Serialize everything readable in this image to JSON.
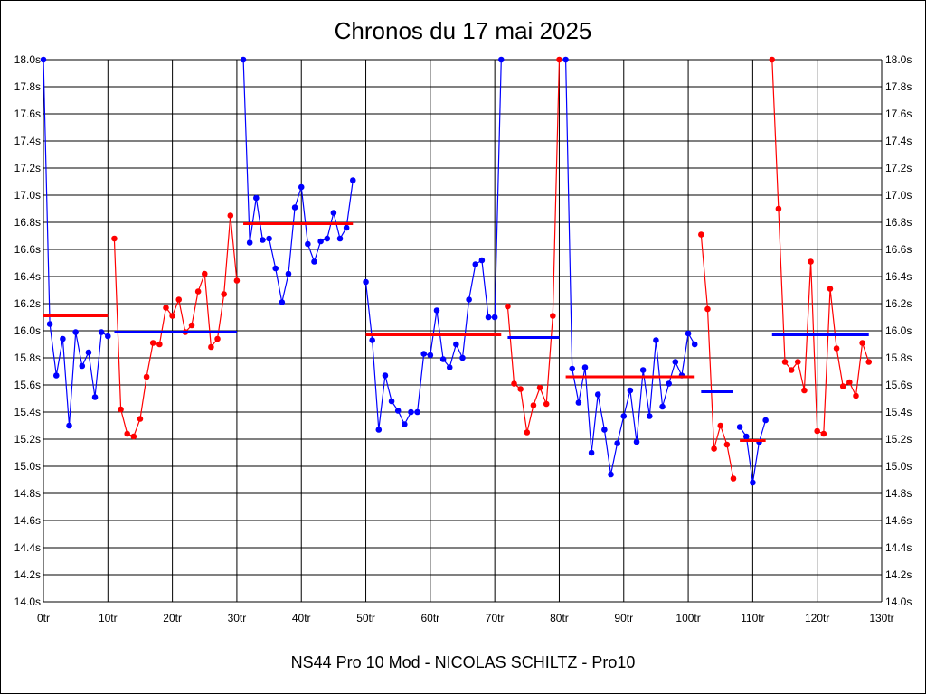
{
  "chart_data": {
    "type": "line",
    "title": "Chronos du 17 mai 2025",
    "xlabel": "NS44 Pro 10 Mod - NICOLAS SCHILTZ - Pro10",
    "ylabel": "",
    "xlim": [
      0,
      130
    ],
    "ylim": [
      14.0,
      18.0
    ],
    "grid": true,
    "x_ticks": [
      "0tr",
      "10tr",
      "20tr",
      "30tr",
      "40tr",
      "50tr",
      "60tr",
      "70tr",
      "80tr",
      "90tr",
      "100tr",
      "110tr",
      "120tr",
      "130tr"
    ],
    "y_ticks": [
      "14.0s",
      "14.2s",
      "14.4s",
      "14.6s",
      "14.8s",
      "15.0s",
      "15.2s",
      "15.4s",
      "15.6s",
      "15.8s",
      "16.0s",
      "16.2s",
      "16.4s",
      "16.6s",
      "16.8s",
      "17.0s",
      "17.2s",
      "17.4s",
      "17.6s",
      "17.8s",
      "18.0s"
    ],
    "colors": {
      "blue": "#0000ff",
      "red": "#ff0000"
    },
    "segments": [
      {
        "color": "blue",
        "x0": 0,
        "values": [
          18.0,
          16.05,
          15.67,
          15.94,
          15.3,
          15.99,
          15.74,
          15.84,
          15.51,
          15.99,
          15.96
        ],
        "mean": 16.11,
        "mean_color": "red",
        "mean_range": [
          0,
          10
        ]
      },
      {
        "color": "red",
        "x0": 11,
        "values": [
          16.68,
          15.42,
          15.24,
          15.22,
          15.35,
          15.66,
          15.91,
          15.9,
          16.17,
          16.11,
          16.23,
          15.99,
          16.04,
          16.29,
          16.42,
          15.88,
          15.94,
          16.27,
          16.85,
          16.37
        ],
        "mean": 15.99,
        "mean_color": "blue",
        "mean_range": [
          11,
          30
        ]
      },
      {
        "color": "blue",
        "x0": 31,
        "values": [
          18.0,
          16.65,
          16.98,
          16.67,
          16.68,
          16.46,
          16.21,
          16.42,
          16.91,
          17.06,
          16.64,
          16.51,
          16.66,
          16.68,
          16.87,
          16.68,
          16.76,
          17.11
        ],
        "mean": 16.79,
        "mean_color": "red",
        "mean_range": [
          31,
          48
        ]
      },
      {
        "color": "blue",
        "x0": 50,
        "values": [
          16.36,
          15.93,
          15.27,
          15.67,
          15.48,
          15.41,
          15.31,
          15.4,
          15.4,
          15.83,
          15.82,
          16.15,
          15.79,
          15.73,
          15.9,
          15.8,
          16.23,
          16.49,
          16.52,
          16.1,
          16.1,
          18.0
        ],
        "mean": 15.97,
        "mean_color": "red",
        "mean_range": [
          50,
          71
        ]
      },
      {
        "color": "red",
        "x0": 72,
        "values": [
          16.18,
          15.61,
          15.57,
          15.25,
          15.45,
          15.58,
          15.46,
          16.11,
          18.0
        ],
        "mean": 15.95,
        "mean_color": "blue",
        "mean_range": [
          72,
          80
        ]
      },
      {
        "color": "blue",
        "x0": 81,
        "values": [
          18.0,
          15.72,
          15.47,
          15.73,
          15.1,
          15.53,
          15.27,
          14.94,
          15.17,
          15.37,
          15.56,
          15.18,
          15.71,
          15.37,
          15.93,
          15.44,
          15.61,
          15.77,
          15.67,
          15.98,
          15.9
        ],
        "mean": 15.66,
        "mean_color": "red",
        "mean_range": [
          81,
          101
        ]
      },
      {
        "color": "red",
        "x0": 102,
        "values": [
          16.71,
          16.16,
          15.13,
          15.3,
          15.16,
          14.91
        ],
        "mean": 15.55,
        "mean_color": "blue",
        "mean_range": [
          102,
          107
        ]
      },
      {
        "color": "blue",
        "x0": 108,
        "values": [
          15.29,
          15.22,
          14.88,
          15.18,
          15.34
        ],
        "mean": 15.19,
        "mean_color": "red",
        "mean_range": [
          108,
          112
        ]
      },
      {
        "color": "red",
        "x0": 113,
        "values": [
          18.0,
          16.9,
          15.77,
          15.71,
          15.77,
          15.56,
          16.51,
          15.26,
          15.24,
          16.31,
          15.87,
          15.59,
          15.62,
          15.52,
          15.91,
          15.77
        ],
        "mean": 15.97,
        "mean_color": "blue",
        "mean_range": [
          113,
          128
        ]
      }
    ]
  }
}
